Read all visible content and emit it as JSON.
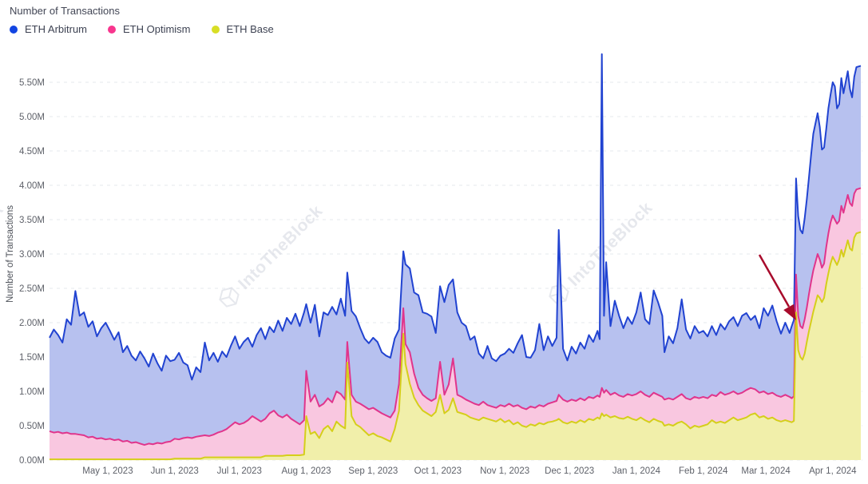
{
  "header": {
    "title": "Number of Transactions"
  },
  "legend": {
    "items": [
      {
        "label": "ETH Arbitrum",
        "color": "#1245e2"
      },
      {
        "label": "ETH Optimism",
        "color": "#f8368e"
      },
      {
        "label": "ETH Base",
        "color": "#d8de25"
      }
    ]
  },
  "watermark": {
    "text": "IntoTheBlock",
    "color": "#d9dce4"
  },
  "annotation": {
    "name": "red-arrow",
    "color": "#a80b2c"
  },
  "chart_data": {
    "type": "area",
    "stacked": true,
    "title": "Number of Transactions",
    "xlabel": "",
    "ylabel": "Number of Transactions",
    "ylim": [
      0,
      6.0
    ],
    "grid": true,
    "legend_position": "top-left",
    "x_start": "2023-04-04",
    "x_end": "2024-04-14",
    "y_ticks": [
      "0.00M",
      "0.50M",
      "1.00M",
      "1.50M",
      "2.00M",
      "2.50M",
      "3.00M",
      "3.50M",
      "4.00M",
      "4.50M",
      "5.00M",
      "5.50M"
    ],
    "x_ticks": [
      {
        "label": "May 1, 2023",
        "date": "2023-05-01"
      },
      {
        "label": "Jun 1, 2023",
        "date": "2023-06-01"
      },
      {
        "label": "Jul 1, 2023",
        "date": "2023-07-01"
      },
      {
        "label": "Aug 1, 2023",
        "date": "2023-08-01"
      },
      {
        "label": "Sep 1, 2023",
        "date": "2023-09-01"
      },
      {
        "label": "Oct 1, 2023",
        "date": "2023-10-01"
      },
      {
        "label": "Nov 1, 2023",
        "date": "2023-11-01"
      },
      {
        "label": "Dec 1, 2023",
        "date": "2023-12-01"
      },
      {
        "label": "Jan 1, 2024",
        "date": "2024-01-01"
      },
      {
        "label": "Feb 1, 2024",
        "date": "2024-02-01"
      },
      {
        "label": "Mar 1, 2024",
        "date": "2024-03-01"
      },
      {
        "label": "Apr 1, 2024",
        "date": "2024-04-01"
      }
    ],
    "series": [
      {
        "name": "ETH Base",
        "color": "#d5ce1a",
        "fill": "#f1efaa"
      },
      {
        "name": "ETH Optimism",
        "color": "#e0358c",
        "fill": "#f9c7e0"
      },
      {
        "name": "ETH Arbitrum",
        "color": "#2143d1",
        "fill": "#b7c1ef"
      }
    ],
    "columns": [
      "date",
      "ETH Base",
      "ETH Optimism",
      "ETH Arbitrum"
    ],
    "units": "millions of transactions per day",
    "points": [
      [
        "2023-04-04",
        0.01,
        0.41,
        1.36
      ],
      [
        "2023-04-06",
        0.01,
        0.39,
        1.5
      ],
      [
        "2023-04-08",
        0.01,
        0.4,
        1.41
      ],
      [
        "2023-04-10",
        0.01,
        0.38,
        1.32
      ],
      [
        "2023-04-12",
        0.01,
        0.39,
        1.65
      ],
      [
        "2023-04-14",
        0.01,
        0.37,
        1.59
      ],
      [
        "2023-04-16",
        0.01,
        0.37,
        2.08
      ],
      [
        "2023-04-18",
        0.01,
        0.36,
        1.73
      ],
      [
        "2023-04-20",
        0.01,
        0.35,
        1.79
      ],
      [
        "2023-04-22",
        0.01,
        0.32,
        1.61
      ],
      [
        "2023-04-24",
        0.01,
        0.33,
        1.68
      ],
      [
        "2023-04-26",
        0.01,
        0.3,
        1.49
      ],
      [
        "2023-04-28",
        0.01,
        0.31,
        1.6
      ],
      [
        "2023-04-30",
        0.01,
        0.29,
        1.7
      ],
      [
        "2023-05-02",
        0.01,
        0.3,
        1.57
      ],
      [
        "2023-05-04",
        0.01,
        0.28,
        1.46
      ],
      [
        "2023-05-06",
        0.01,
        0.29,
        1.56
      ],
      [
        "2023-05-08",
        0.01,
        0.26,
        1.3
      ],
      [
        "2023-05-10",
        0.01,
        0.27,
        1.38
      ],
      [
        "2023-05-12",
        0.01,
        0.24,
        1.27
      ],
      [
        "2023-05-14",
        0.01,
        0.25,
        1.19
      ],
      [
        "2023-05-16",
        0.01,
        0.23,
        1.34
      ],
      [
        "2023-05-18",
        0.01,
        0.21,
        1.26
      ],
      [
        "2023-05-20",
        0.01,
        0.23,
        1.12
      ],
      [
        "2023-05-22",
        0.01,
        0.22,
        1.32
      ],
      [
        "2023-05-24",
        0.01,
        0.24,
        1.16
      ],
      [
        "2023-05-26",
        0.01,
        0.23,
        1.06
      ],
      [
        "2023-05-28",
        0.01,
        0.25,
        1.26
      ],
      [
        "2023-05-30",
        0.01,
        0.26,
        1.17
      ],
      [
        "2023-06-01",
        0.02,
        0.29,
        1.15
      ],
      [
        "2023-06-03",
        0.02,
        0.28,
        1.26
      ],
      [
        "2023-06-05",
        0.02,
        0.3,
        1.1
      ],
      [
        "2023-06-07",
        0.02,
        0.31,
        1.05
      ],
      [
        "2023-06-09",
        0.02,
        0.3,
        0.85
      ],
      [
        "2023-06-11",
        0.02,
        0.32,
        1.01
      ],
      [
        "2023-06-13",
        0.02,
        0.33,
        0.93
      ],
      [
        "2023-06-15",
        0.04,
        0.32,
        1.35
      ],
      [
        "2023-06-17",
        0.04,
        0.31,
        1.1
      ],
      [
        "2023-06-19",
        0.04,
        0.33,
        1.19
      ],
      [
        "2023-06-21",
        0.04,
        0.36,
        1.03
      ],
      [
        "2023-06-23",
        0.04,
        0.38,
        1.16
      ],
      [
        "2023-06-25",
        0.04,
        0.41,
        1.05
      ],
      [
        "2023-06-27",
        0.04,
        0.46,
        1.16
      ],
      [
        "2023-06-29",
        0.04,
        0.51,
        1.25
      ],
      [
        "2023-07-01",
        0.04,
        0.48,
        1.1
      ],
      [
        "2023-07-03",
        0.04,
        0.5,
        1.18
      ],
      [
        "2023-07-05",
        0.04,
        0.54,
        1.2
      ],
      [
        "2023-07-07",
        0.04,
        0.6,
        1.01
      ],
      [
        "2023-07-09",
        0.04,
        0.56,
        1.22
      ],
      [
        "2023-07-11",
        0.04,
        0.52,
        1.36
      ],
      [
        "2023-07-13",
        0.06,
        0.54,
        1.16
      ],
      [
        "2023-07-15",
        0.06,
        0.62,
        1.26
      ],
      [
        "2023-07-17",
        0.06,
        0.66,
        1.14
      ],
      [
        "2023-07-19",
        0.06,
        0.59,
        1.38
      ],
      [
        "2023-07-21",
        0.06,
        0.56,
        1.26
      ],
      [
        "2023-07-23",
        0.07,
        0.59,
        1.41
      ],
      [
        "2023-07-25",
        0.07,
        0.53,
        1.38
      ],
      [
        "2023-07-27",
        0.07,
        0.49,
        1.57
      ],
      [
        "2023-07-29",
        0.07,
        0.45,
        1.43
      ],
      [
        "2023-07-31",
        0.08,
        0.5,
        1.57
      ],
      [
        "2023-08-01",
        0.64,
        0.66,
        0.97
      ],
      [
        "2023-08-03",
        0.38,
        0.47,
        1.15
      ],
      [
        "2023-08-05",
        0.41,
        0.54,
        1.31
      ],
      [
        "2023-08-07",
        0.32,
        0.46,
        1.02
      ],
      [
        "2023-08-09",
        0.45,
        0.37,
        1.33
      ],
      [
        "2023-08-11",
        0.5,
        0.4,
        1.21
      ],
      [
        "2023-08-13",
        0.42,
        0.42,
        1.39
      ],
      [
        "2023-08-15",
        0.56,
        0.44,
        1.12
      ],
      [
        "2023-08-17",
        0.5,
        0.46,
        1.39
      ],
      [
        "2023-08-19",
        0.46,
        0.42,
        1.22
      ],
      [
        "2023-08-20",
        1.42,
        0.3,
        1.01
      ],
      [
        "2023-08-22",
        0.64,
        0.31,
        1.22
      ],
      [
        "2023-08-24",
        0.52,
        0.33,
        1.24
      ],
      [
        "2023-08-26",
        0.48,
        0.34,
        1.1
      ],
      [
        "2023-08-28",
        0.42,
        0.36,
        0.99
      ],
      [
        "2023-08-30",
        0.36,
        0.38,
        0.96
      ],
      [
        "2023-09-01",
        0.39,
        0.37,
        1.02
      ],
      [
        "2023-09-03",
        0.35,
        0.37,
        1.0
      ],
      [
        "2023-09-05",
        0.33,
        0.35,
        0.89
      ],
      [
        "2023-09-07",
        0.3,
        0.35,
        0.87
      ],
      [
        "2023-09-09",
        0.27,
        0.35,
        0.87
      ],
      [
        "2023-09-11",
        0.45,
        0.27,
        1.05
      ],
      [
        "2023-09-13",
        0.72,
        0.39,
        0.79
      ],
      [
        "2023-09-15",
        1.84,
        0.37,
        0.83
      ],
      [
        "2023-09-16",
        1.4,
        0.29,
        1.16
      ],
      [
        "2023-09-18",
        1.11,
        0.46,
        1.22
      ],
      [
        "2023-09-20",
        0.91,
        0.35,
        1.18
      ],
      [
        "2023-09-22",
        0.8,
        0.25,
        1.35
      ],
      [
        "2023-09-24",
        0.72,
        0.23,
        1.2
      ],
      [
        "2023-09-26",
        0.68,
        0.22,
        1.23
      ],
      [
        "2023-09-28",
        0.64,
        0.22,
        1.23
      ],
      [
        "2023-09-30",
        0.7,
        0.2,
        0.95
      ],
      [
        "2023-10-02",
        0.95,
        0.48,
        1.1
      ],
      [
        "2023-10-04",
        0.68,
        0.27,
        1.35
      ],
      [
        "2023-10-06",
        0.73,
        0.37,
        1.45
      ],
      [
        "2023-10-08",
        0.9,
        0.58,
        1.15
      ],
      [
        "2023-10-10",
        0.7,
        0.25,
        1.2
      ],
      [
        "2023-10-12",
        0.68,
        0.24,
        1.08
      ],
      [
        "2023-10-14",
        0.66,
        0.22,
        1.07
      ],
      [
        "2023-10-16",
        0.62,
        0.23,
        0.9
      ],
      [
        "2023-10-18",
        0.6,
        0.22,
        0.98
      ],
      [
        "2023-10-20",
        0.58,
        0.22,
        0.75
      ],
      [
        "2023-10-22",
        0.62,
        0.23,
        0.63
      ],
      [
        "2023-10-24",
        0.6,
        0.2,
        0.86
      ],
      [
        "2023-10-26",
        0.58,
        0.2,
        0.7
      ],
      [
        "2023-10-28",
        0.56,
        0.2,
        0.68
      ],
      [
        "2023-10-30",
        0.6,
        0.2,
        0.72
      ],
      [
        "2023-11-01",
        0.55,
        0.23,
        0.77
      ],
      [
        "2023-11-03",
        0.58,
        0.24,
        0.8
      ],
      [
        "2023-11-05",
        0.52,
        0.26,
        0.78
      ],
      [
        "2023-11-07",
        0.55,
        0.25,
        0.9
      ],
      [
        "2023-11-09",
        0.5,
        0.26,
        1.06
      ],
      [
        "2023-11-11",
        0.48,
        0.26,
        0.76
      ],
      [
        "2023-11-13",
        0.52,
        0.26,
        0.71
      ],
      [
        "2023-11-15",
        0.5,
        0.26,
        0.84
      ],
      [
        "2023-11-17",
        0.54,
        0.26,
        1.18
      ],
      [
        "2023-11-19",
        0.52,
        0.26,
        0.82
      ],
      [
        "2023-11-21",
        0.55,
        0.27,
        0.98
      ],
      [
        "2023-11-23",
        0.56,
        0.28,
        0.82
      ],
      [
        "2023-11-25",
        0.58,
        0.28,
        0.92
      ],
      [
        "2023-11-26",
        0.6,
        0.35,
        2.4
      ],
      [
        "2023-11-28",
        0.55,
        0.33,
        0.74
      ],
      [
        "2023-11-30",
        0.53,
        0.32,
        0.6
      ],
      [
        "2023-12-02",
        0.56,
        0.32,
        0.77
      ],
      [
        "2023-12-04",
        0.54,
        0.32,
        0.69
      ],
      [
        "2023-12-06",
        0.58,
        0.32,
        0.81
      ],
      [
        "2023-12-08",
        0.55,
        0.32,
        0.75
      ],
      [
        "2023-12-10",
        0.6,
        0.32,
        0.9
      ],
      [
        "2023-12-12",
        0.58,
        0.32,
        0.82
      ],
      [
        "2023-12-14",
        0.62,
        0.32,
        0.94
      ],
      [
        "2023-12-15",
        0.6,
        0.32,
        0.84
      ],
      [
        "2023-12-16",
        0.68,
        0.37,
        4.86
      ],
      [
        "2023-12-17",
        0.64,
        0.34,
        1.12
      ],
      [
        "2023-12-18",
        0.66,
        0.36,
        1.86
      ],
      [
        "2023-12-20",
        0.62,
        0.33,
        1.0
      ],
      [
        "2023-12-22",
        0.64,
        0.34,
        1.34
      ],
      [
        "2023-12-24",
        0.61,
        0.33,
        1.16
      ],
      [
        "2023-12-26",
        0.6,
        0.32,
        1.0
      ],
      [
        "2023-12-28",
        0.63,
        0.33,
        1.12
      ],
      [
        "2023-12-30",
        0.6,
        0.34,
        1.04
      ],
      [
        "2024-01-01",
        0.58,
        0.38,
        1.19
      ],
      [
        "2024-01-03",
        0.62,
        0.38,
        1.44
      ],
      [
        "2024-01-05",
        0.58,
        0.37,
        1.1
      ],
      [
        "2024-01-07",
        0.55,
        0.37,
        1.06
      ],
      [
        "2024-01-09",
        0.6,
        0.38,
        1.49
      ],
      [
        "2024-01-11",
        0.57,
        0.38,
        1.35
      ],
      [
        "2024-01-13",
        0.55,
        0.37,
        1.18
      ],
      [
        "2024-01-14",
        0.5,
        0.38,
        0.69
      ],
      [
        "2024-01-16",
        0.52,
        0.38,
        0.9
      ],
      [
        "2024-01-18",
        0.5,
        0.38,
        0.82
      ],
      [
        "2024-01-20",
        0.54,
        0.38,
        1.0
      ],
      [
        "2024-01-22",
        0.56,
        0.4,
        1.38
      ],
      [
        "2024-01-24",
        0.52,
        0.38,
        1.0
      ],
      [
        "2024-01-26",
        0.46,
        0.42,
        0.89
      ],
      [
        "2024-01-28",
        0.5,
        0.42,
        1.03
      ],
      [
        "2024-01-30",
        0.48,
        0.42,
        0.95
      ],
      [
        "2024-02-01",
        0.5,
        0.42,
        0.96
      ],
      [
        "2024-02-03",
        0.52,
        0.38,
        0.9
      ],
      [
        "2024-02-05",
        0.58,
        0.37,
        1.0
      ],
      [
        "2024-02-07",
        0.54,
        0.39,
        0.89
      ],
      [
        "2024-02-09",
        0.56,
        0.43,
        0.99
      ],
      [
        "2024-02-11",
        0.54,
        0.41,
        0.95
      ],
      [
        "2024-02-13",
        0.58,
        0.39,
        1.05
      ],
      [
        "2024-02-15",
        0.62,
        0.38,
        1.08
      ],
      [
        "2024-02-17",
        0.58,
        0.38,
        0.99
      ],
      [
        "2024-02-19",
        0.6,
        0.38,
        1.12
      ],
      [
        "2024-02-21",
        0.62,
        0.4,
        1.12
      ],
      [
        "2024-02-23",
        0.66,
        0.39,
        0.99
      ],
      [
        "2024-02-25",
        0.68,
        0.35,
        1.07
      ],
      [
        "2024-02-27",
        0.62,
        0.36,
        0.94
      ],
      [
        "2024-02-29",
        0.64,
        0.36,
        1.21
      ],
      [
        "2024-03-02",
        0.6,
        0.36,
        1.14
      ],
      [
        "2024-03-04",
        0.62,
        0.36,
        1.27
      ],
      [
        "2024-03-06",
        0.58,
        0.36,
        1.08
      ],
      [
        "2024-03-08",
        0.56,
        0.36,
        0.92
      ],
      [
        "2024-03-10",
        0.58,
        0.37,
        1.05
      ],
      [
        "2024-03-12",
        0.56,
        0.36,
        0.93
      ],
      [
        "2024-03-13",
        0.55,
        0.35,
        1.05
      ],
      [
        "2024-03-14",
        0.57,
        0.36,
        1.11
      ],
      [
        "2024-03-15",
        2.15,
        0.55,
        1.4
      ],
      [
        "2024-03-16",
        1.6,
        0.5,
        1.45
      ],
      [
        "2024-03-17",
        1.5,
        0.45,
        1.4
      ],
      [
        "2024-03-18",
        1.46,
        0.46,
        1.38
      ],
      [
        "2024-03-19",
        1.55,
        0.5,
        1.47
      ],
      [
        "2024-03-20",
        1.72,
        0.5,
        1.58
      ],
      [
        "2024-03-21",
        1.88,
        0.54,
        1.7
      ],
      [
        "2024-03-22",
        2.02,
        0.58,
        1.85
      ],
      [
        "2024-03-23",
        2.16,
        0.6,
        1.99
      ],
      [
        "2024-03-25",
        2.4,
        0.6,
        2.05
      ],
      [
        "2024-03-26",
        2.36,
        0.56,
        1.93
      ],
      [
        "2024-03-27",
        2.3,
        0.5,
        1.72
      ],
      [
        "2024-03-28",
        2.36,
        0.5,
        1.69
      ],
      [
        "2024-03-29",
        2.56,
        0.54,
        1.72
      ],
      [
        "2024-03-30",
        2.72,
        0.58,
        1.82
      ],
      [
        "2024-03-31",
        2.86,
        0.6,
        1.86
      ],
      [
        "2024-04-01",
        2.96,
        0.6,
        1.94
      ],
      [
        "2024-04-02",
        2.9,
        0.6,
        1.94
      ],
      [
        "2024-04-03",
        2.84,
        0.6,
        1.68
      ],
      [
        "2024-04-04",
        2.92,
        0.56,
        1.7
      ],
      [
        "2024-04-05",
        3.06,
        0.64,
        1.86
      ],
      [
        "2024-04-06",
        2.96,
        0.64,
        1.74
      ],
      [
        "2024-04-08",
        3.2,
        0.66,
        1.8
      ],
      [
        "2024-04-09",
        3.08,
        0.66,
        1.66
      ],
      [
        "2024-04-10",
        3.05,
        0.65,
        1.58
      ],
      [
        "2024-04-11",
        3.24,
        0.64,
        1.7
      ],
      [
        "2024-04-12",
        3.3,
        0.64,
        1.78
      ],
      [
        "2024-04-14",
        3.32,
        0.64,
        1.78
      ]
    ]
  }
}
